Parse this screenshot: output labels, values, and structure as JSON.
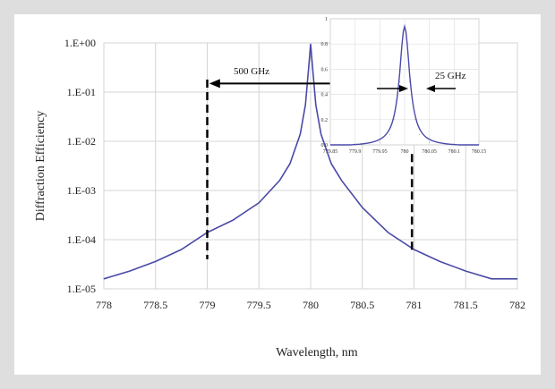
{
  "chart_data": [
    {
      "type": "line",
      "title": "",
      "xlabel": "Wavelength, nm",
      "ylabel": "Diffraction Efficiency",
      "xlim": [
        778,
        782
      ],
      "ylim": [
        1e-05,
        1
      ],
      "yscale": "log",
      "grid": true,
      "x_ticks": [
        "778",
        "778.5",
        "779",
        "779.5",
        "780",
        "780.5",
        "781",
        "781.5",
        "782"
      ],
      "y_ticks": [
        "1.E+00",
        "1.E-01",
        "1.E-02",
        "1.E-03",
        "1.E-04",
        "1.E-05"
      ],
      "line_color": "#4a4aa8",
      "series": [
        {
          "x": [
            778.0,
            778.25,
            778.5,
            778.75,
            779.0,
            779.25,
            779.5,
            779.7,
            779.8,
            779.9,
            779.95,
            779.98,
            780.0,
            780.02,
            780.05,
            780.1,
            780.2,
            780.3,
            780.5,
            780.75,
            781.0,
            781.25,
            781.5,
            781.75,
            782.0
          ],
          "y": [
            1.6e-05,
            2.3e-05,
            3.6e-05,
            6.3e-05,
            0.00014,
            0.00025,
            0.00056,
            0.0016,
            0.0035,
            0.014,
            0.055,
            0.3,
            0.95,
            0.3,
            0.055,
            0.014,
            0.0035,
            0.0016,
            0.00045,
            0.00014,
            6.3e-05,
            3.6e-05,
            2.3e-05,
            1.6e-05,
            1.6e-05
          ]
        }
      ],
      "annotations": [
        {
          "text": "500 GHz"
        }
      ]
    },
    {
      "type": "line",
      "title": "",
      "xlim": [
        779.85,
        780.15
      ],
      "ylim": [
        0,
        1
      ],
      "grid": true,
      "x_ticks": [
        "779.85",
        "779.9",
        "779.95",
        "780",
        "780.05",
        "780.1",
        "780.15"
      ],
      "y_ticks": [
        "1",
        "0.8",
        "0.6",
        "0.4",
        "0.2",
        "0.0"
      ],
      "series": [
        {
          "x": [
            779.85,
            779.9,
            779.95,
            779.97,
            779.98,
            779.99,
            780.0,
            780.01,
            780.02,
            780.03,
            780.05,
            780.1,
            780.15
          ],
          "y": [
            0.0,
            0.0,
            0.02,
            0.08,
            0.2,
            0.5,
            0.95,
            0.5,
            0.2,
            0.08,
            0.02,
            0.0,
            0.0
          ]
        }
      ],
      "annotations": [
        {
          "text": "25 GHz"
        }
      ]
    }
  ]
}
